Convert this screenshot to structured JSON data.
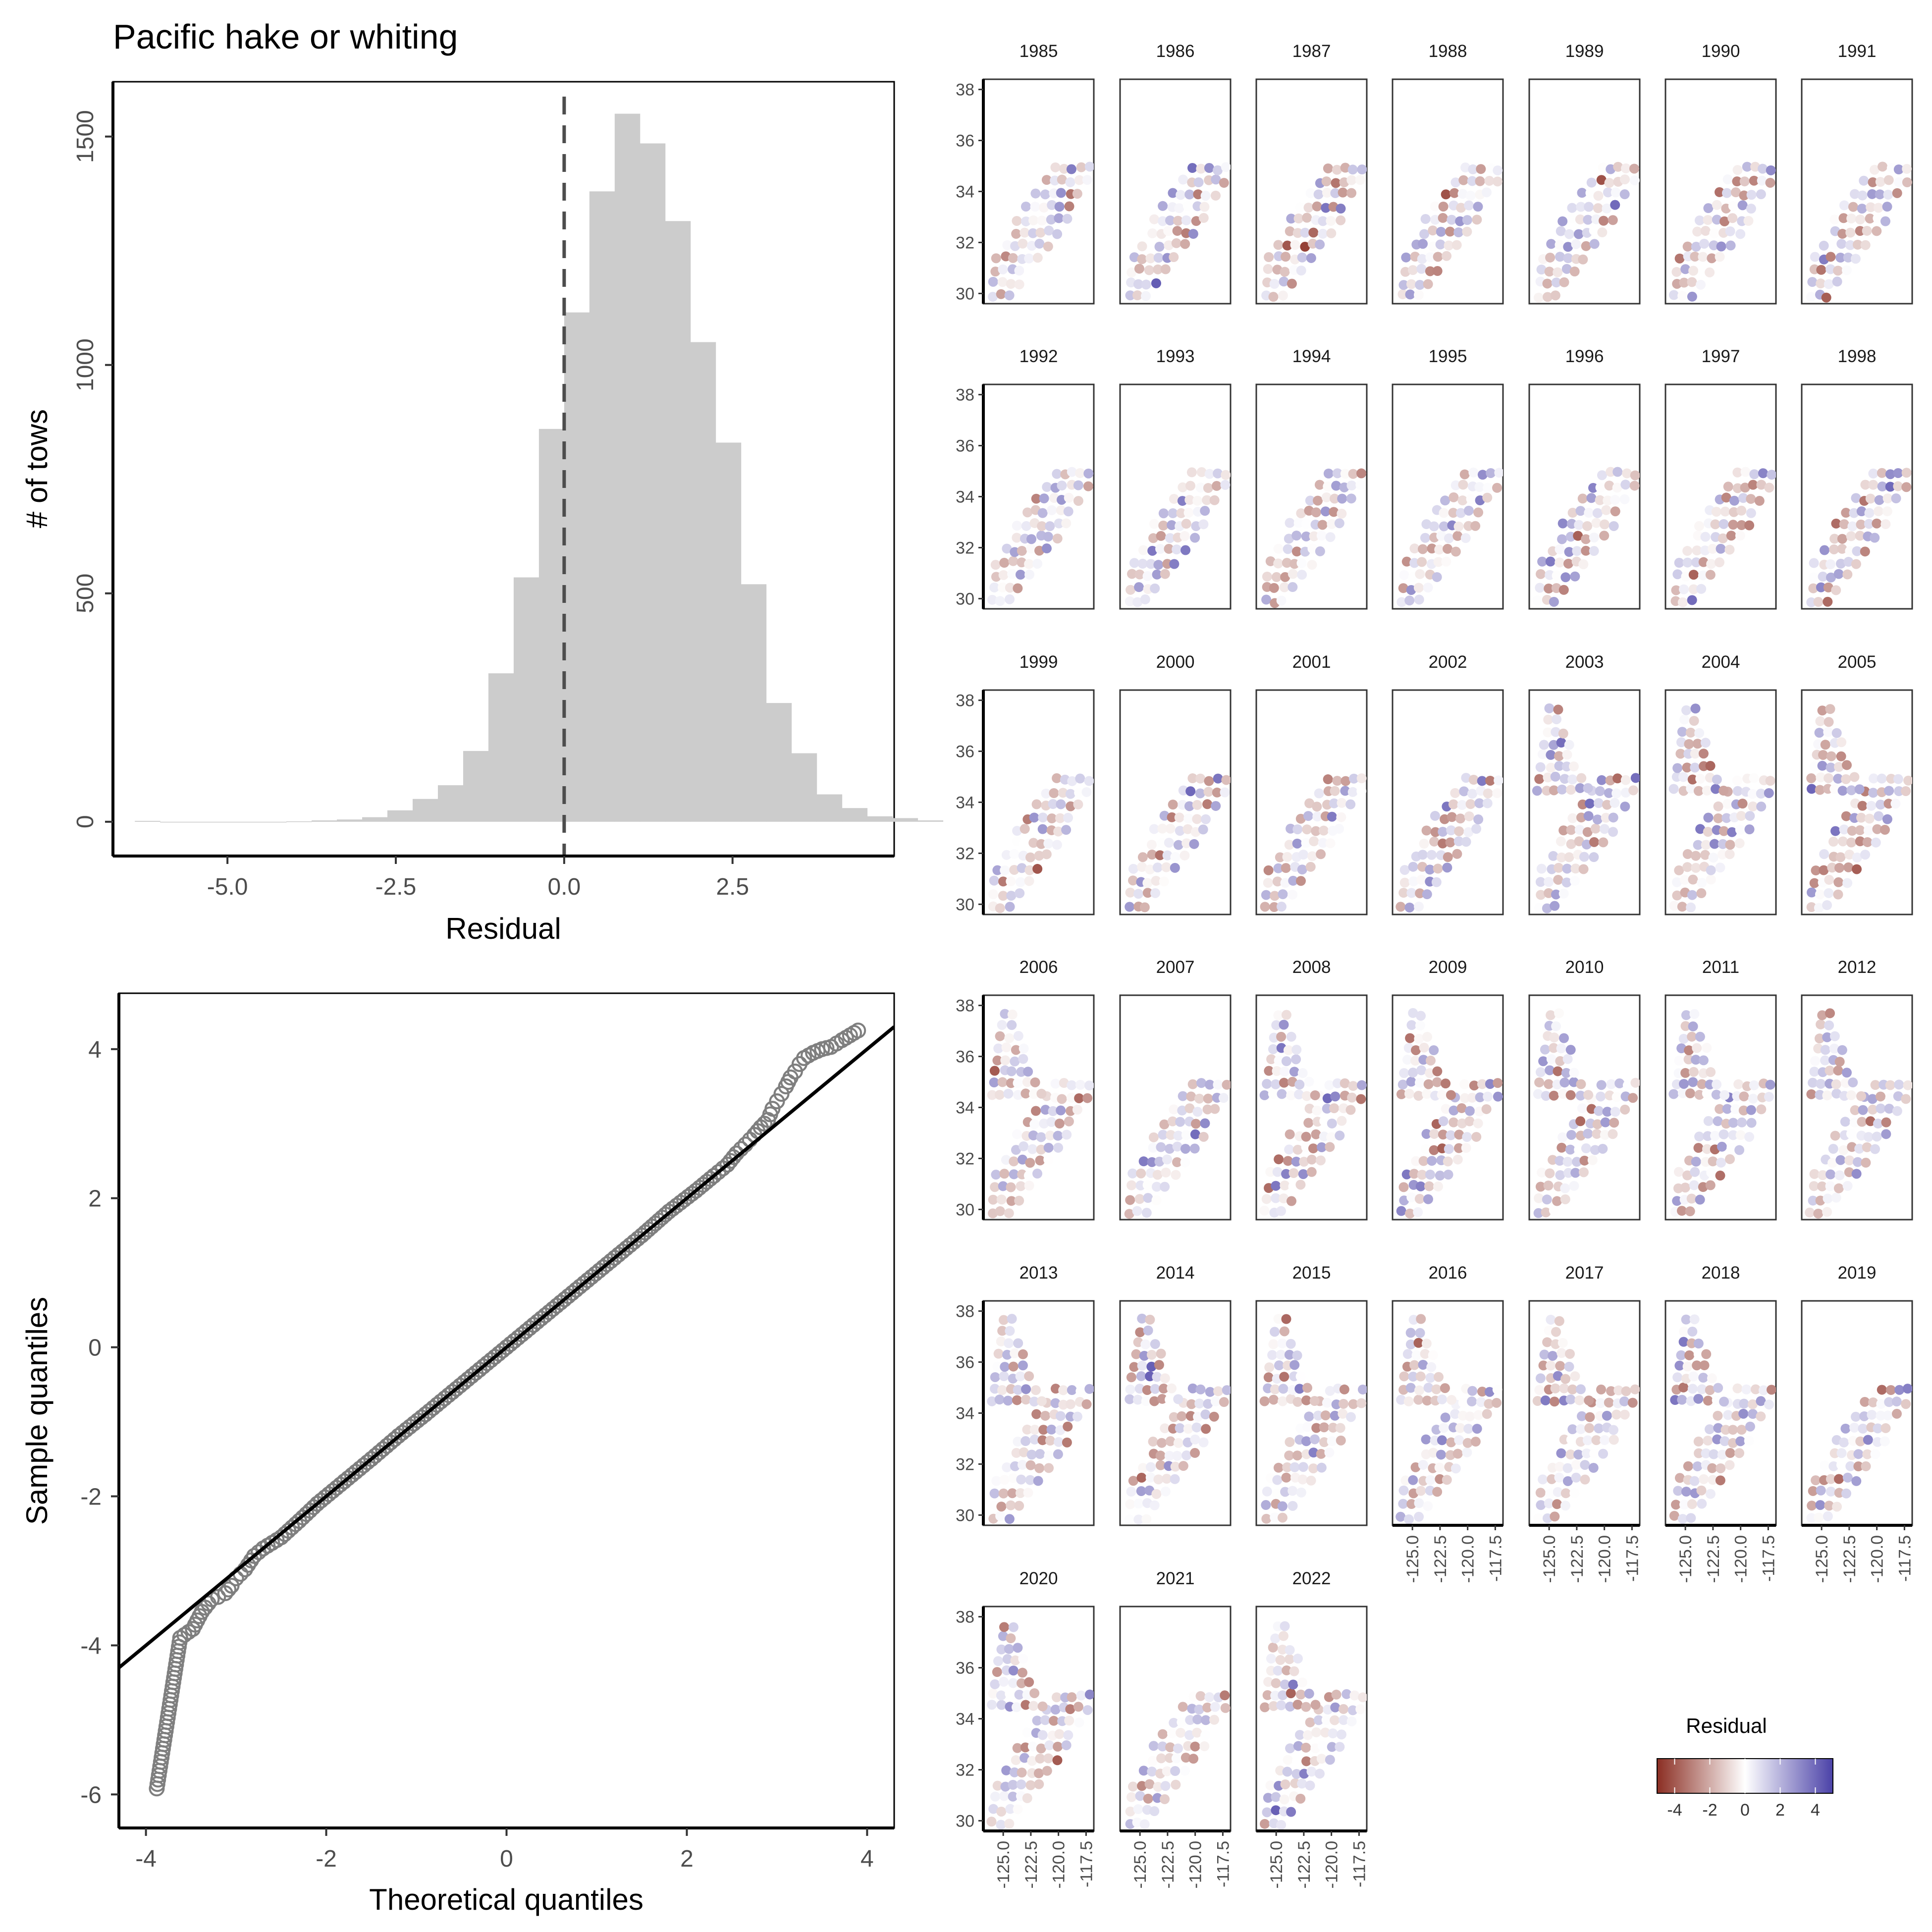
{
  "figure": {
    "title": "Pacific hake or whiting"
  },
  "chart_data": [
    {
      "type": "bar",
      "name": "residual-histogram",
      "title": "Pacific hake or whiting",
      "xlabel": "Residual",
      "ylabel": "# of tows",
      "xlim": [
        -6.7,
        4.9
      ],
      "ylim": [
        -75,
        1620
      ],
      "xticks": [
        -5.0,
        -2.5,
        0.0,
        2.5
      ],
      "xtick_labels": [
        "-5.0",
        "-2.5",
        "0.0",
        "2.5"
      ],
      "yticks": [
        0,
        500,
        1000,
        1500
      ],
      "ytick_labels": [
        "0",
        "500",
        "1000",
        "1500"
      ],
      "bin_width": 0.375,
      "bin_edges_start": -6.375,
      "values": [
        2,
        0,
        0,
        0,
        0,
        0,
        1,
        3,
        5,
        10,
        25,
        50,
        80,
        155,
        325,
        535,
        860,
        1115,
        1380,
        1550,
        1485,
        1315,
        1050,
        830,
        520,
        260,
        150,
        60,
        30,
        12,
        8,
        3
      ],
      "reference_line": {
        "x": 0.0,
        "style": "dashed",
        "color": "#4d4d4d"
      },
      "bar_color": "#cccccc",
      "grid": false
    },
    {
      "type": "scatter",
      "name": "qq-plot",
      "xlabel": "Theoretical quantiles",
      "ylabel": "Sample quantiles",
      "xlim": [
        -4.3,
        4.3
      ],
      "ylim": [
        -6.45,
        4.75
      ],
      "xticks": [
        -4,
        -2,
        0,
        2,
        4
      ],
      "xtick_labels": [
        "-4",
        "-2",
        "0",
        "2",
        "4"
      ],
      "yticks": [
        -6,
        -4,
        -2,
        0,
        2,
        4
      ],
      "ytick_labels": [
        "-6",
        "-4",
        "-2",
        "0",
        "2",
        "4"
      ],
      "reference_line": {
        "intercept": 0.0,
        "slope": 1.0
      },
      "points": [
        [
          -3.88,
          -5.92
        ],
        [
          -3.62,
          -3.9
        ],
        [
          -3.48,
          -3.78
        ],
        [
          -3.38,
          -3.55
        ],
        [
          -3.27,
          -3.38
        ],
        [
          -3.2,
          -3.35
        ],
        [
          -3.12,
          -3.3
        ],
        [
          -3.05,
          -3.2
        ],
        [
          -3.0,
          -3.1
        ],
        [
          -2.9,
          -2.98
        ],
        [
          -2.8,
          -2.8
        ],
        [
          -2.7,
          -2.7
        ],
        [
          -2.5,
          -2.55
        ],
        [
          -2.3,
          -2.33
        ],
        [
          -2.1,
          -2.1
        ],
        [
          -1.8,
          -1.8
        ],
        [
          -1.5,
          -1.5
        ],
        [
          -1.2,
          -1.19
        ],
        [
          -0.9,
          -0.9
        ],
        [
          -0.6,
          -0.6
        ],
        [
          -0.3,
          -0.3
        ],
        [
          0.0,
          0.0
        ],
        [
          0.3,
          0.3
        ],
        [
          0.6,
          0.6
        ],
        [
          0.9,
          0.9
        ],
        [
          1.2,
          1.2
        ],
        [
          1.5,
          1.5
        ],
        [
          1.8,
          1.82
        ],
        [
          2.1,
          2.1
        ],
        [
          2.3,
          2.3
        ],
        [
          2.45,
          2.45
        ],
        [
          2.55,
          2.6
        ],
        [
          2.65,
          2.72
        ],
        [
          2.75,
          2.85
        ],
        [
          2.82,
          2.95
        ],
        [
          2.9,
          3.05
        ],
        [
          2.95,
          3.2
        ],
        [
          3.0,
          3.3
        ],
        [
          3.05,
          3.4
        ],
        [
          3.1,
          3.5
        ],
        [
          3.15,
          3.62
        ],
        [
          3.2,
          3.7
        ],
        [
          3.25,
          3.8
        ],
        [
          3.3,
          3.88
        ],
        [
          3.4,
          3.95
        ],
        [
          3.5,
          4.0
        ],
        [
          3.6,
          4.03
        ],
        [
          3.72,
          4.12
        ],
        [
          3.9,
          4.25
        ]
      ],
      "point_style": "open-circle",
      "point_color": "#7f7f7f",
      "grid": false
    },
    {
      "type": "scatter",
      "name": "spatial-residual-maps",
      "panel_years": [
        "1985",
        "1986",
        "1987",
        "1988",
        "1989",
        "1990",
        "1991",
        "1992",
        "1993",
        "1994",
        "1995",
        "1996",
        "1997",
        "1998",
        "1999",
        "2000",
        "2001",
        "2002",
        "2003",
        "2004",
        "2005",
        "2006",
        "2007",
        "2008",
        "2009",
        "2010",
        "2011",
        "2012",
        "2013",
        "2014",
        "2015",
        "2016",
        "2017",
        "2018",
        "2019",
        "2020",
        "2021",
        "2022"
      ],
      "xlim": [
        -126.8,
        -116.8
      ],
      "ylim": [
        29.6,
        38.4
      ],
      "xticks": [
        -125.0,
        -122.5,
        -120.0,
        -117.5
      ],
      "xtick_labels": [
        "-125.0",
        "-122.5",
        "-120.0",
        "-117.5"
      ],
      "yticks": [
        30,
        32,
        34,
        36,
        38
      ],
      "ytick_labels": [
        "30",
        "32",
        "34",
        "36",
        "38"
      ],
      "color_scale": {
        "title": "Residual",
        "min": -5,
        "max": 5,
        "low_color": "#8b2e23",
        "mid_color": "#ffffff",
        "high_color": "#4b42a8",
        "ticks": [
          -4,
          -2,
          0,
          2,
          4
        ],
        "tick_labels": [
          "-4",
          "-2",
          "0",
          "2",
          "4"
        ]
      }
    }
  ]
}
